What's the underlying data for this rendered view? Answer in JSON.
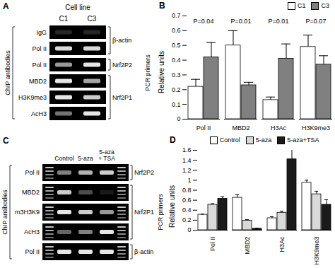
{
  "panels": [
    {
      "panel_label": "A",
      "type": "gel",
      "header": "Cell line",
      "columns": [
        [
          "C1"
        ],
        [
          "C3"
        ]
      ],
      "rows_title": "ChIP antibodies",
      "groups_title": "PCR primers",
      "ladders": false,
      "rows": [
        {
          "antibody": "IgG",
          "bands": [
            0.15,
            0.15
          ]
        },
        {
          "antibody": "Pol II",
          "bands": [
            0.85,
            0.85
          ]
        },
        {
          "antibody": "Pol II",
          "bands": [
            0.6,
            0.9
          ]
        },
        {
          "antibody": "MBD2",
          "bands": [
            0.9,
            0.65
          ]
        },
        {
          "antibody": "H3K9me3",
          "bands": [
            0.9,
            0.8
          ]
        },
        {
          "antibody": "AcH3",
          "bands": [
            0.45,
            0.9
          ]
        }
      ],
      "groups": [
        {
          "label": "β-actin",
          "first_row": 0,
          "last_row": 1
        },
        {
          "label": "Nrf2P2",
          "first_row": 2,
          "last_row": 2
        },
        {
          "label": "Nrf2P1",
          "first_row": 3,
          "last_row": 5
        }
      ]
    },
    {
      "panel_label": "C",
      "type": "gel",
      "columns": [
        [
          "Control"
        ],
        [
          "5-aza"
        ],
        [
          "5-aza",
          "+ TSA"
        ]
      ],
      "rows_title": "ChIP antibodies",
      "groups_title": "PCR primers",
      "ladders": true,
      "rows": [
        {
          "antibody": "Pol II",
          "bands": [
            0.5,
            0.7,
            0.8
          ]
        },
        {
          "antibody": "MBD2",
          "bands": [
            0.8,
            0.3,
            0.1
          ]
        },
        {
          "antibody": "m3H3K9",
          "bands": [
            0.9,
            0.8,
            0.6
          ]
        },
        {
          "antibody": "AcH3",
          "bands": [
            0.4,
            0.5,
            0.9
          ]
        },
        {
          "antibody": "Pol II",
          "bands": [
            0.9,
            0.9,
            0.9
          ]
        }
      ],
      "groups": [
        {
          "label": "Nrf2P2",
          "first_row": 0,
          "last_row": 0
        },
        {
          "label": "Nrf2P1",
          "first_row": 1,
          "last_row": 3
        },
        {
          "label": "β-actin",
          "first_row": 4,
          "last_row": 4
        }
      ]
    }
  ],
  "chart_data": [
    {
      "panel_label": "B",
      "type": "bar",
      "categories": [
        "Pol II",
        "MBD2",
        "H3Ac",
        "H3K9me3"
      ],
      "series": [
        {
          "name": "C1",
          "color": "#ffffff",
          "values": [
            0.22,
            0.5,
            0.13,
            0.49
          ],
          "errors": [
            0.05,
            0.1,
            0.02,
            0.08
          ]
        },
        {
          "name": "C3",
          "color": "#808080",
          "values": [
            0.42,
            0.23,
            0.41,
            0.37
          ],
          "errors": [
            0.1,
            0.02,
            0.1,
            0.06
          ]
        }
      ],
      "ylabel": "Relative units",
      "ylim": [
        0,
        0.7
      ],
      "yticks": [
        0,
        0.1,
        0.2,
        0.3,
        0.4,
        0.5,
        0.6,
        0.7
      ],
      "annotations": [
        {
          "category": "Pol II",
          "text": "P=0.04"
        },
        {
          "category": "MBD2",
          "text": "P=0.01"
        },
        {
          "category": "H3Ac",
          "text": "P=0.01"
        },
        {
          "category": "H3K9me3",
          "text": "P=0.07"
        }
      ],
      "legend": "top-right",
      "grid": false
    },
    {
      "panel_label": "D",
      "type": "bar",
      "categories": [
        "Pol II",
        "MBD2",
        "H3Ac",
        "H3K9me3"
      ],
      "series": [
        {
          "name": "Control",
          "color": "#ffffff",
          "values": [
            0.31,
            0.65,
            0.24,
            0.95
          ],
          "errors": [
            0.01,
            0.06,
            0.03,
            0.05
          ]
        },
        {
          "name": "5-aza",
          "color": "#d9d9d9",
          "values": [
            0.51,
            0.19,
            0.35,
            0.72
          ],
          "errors": [
            0.02,
            0.02,
            0.03,
            0.06
          ]
        },
        {
          "name": "5-aza+TSA",
          "color": "#1a1a1a",
          "values": [
            0.63,
            0.03,
            1.42,
            0.51
          ],
          "errors": [
            0.04,
            0.01,
            0.22,
            0.1
          ]
        }
      ],
      "ylabel": "Relative units",
      "ylim": [
        0,
        1.6
      ],
      "yticks": [
        0,
        0.2,
        0.4,
        0.6,
        0.8,
        1,
        1.2,
        1.4,
        1.6
      ],
      "legend": "top-left",
      "grid": false
    }
  ]
}
